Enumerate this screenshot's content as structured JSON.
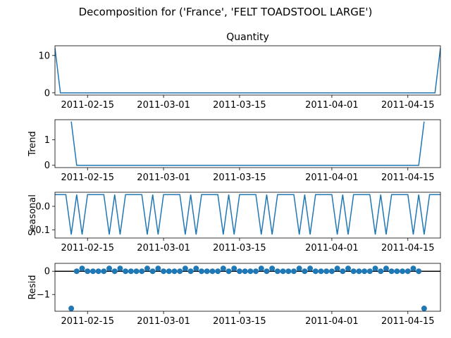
{
  "chart_data": {
    "type": "line",
    "title": "Decomposition for ('France', 'FELT TOADSTOOL LARGE')",
    "x_ticks": [
      "2011-02-15",
      "2011-03-01",
      "2011-03-15",
      "2011-04-01",
      "2011-04-15"
    ],
    "x_tick_days": [
      15,
      29,
      43,
      60,
      74
    ],
    "x_range_days": [
      9,
      80
    ],
    "panels": [
      {
        "name": "observed",
        "title": "Quantity",
        "ylabel": "",
        "kind": "line",
        "color": "#1f77b4",
        "ylim": [
          -0.6,
          12.6
        ],
        "yticks": [
          0,
          10
        ],
        "points": [
          [
            9,
            12
          ],
          [
            10,
            0
          ],
          [
            79,
            0
          ],
          [
            80,
            12
          ]
        ]
      },
      {
        "name": "trend",
        "title": "",
        "ylabel": "Trend",
        "kind": "line",
        "color": "#1f77b4",
        "ylim": [
          -0.09,
          1.78
        ],
        "yticks": [
          0,
          1
        ],
        "points": [
          [
            12,
            1.71
          ],
          [
            13,
            0
          ],
          [
            76,
            0
          ],
          [
            77,
            1.71
          ]
        ]
      },
      {
        "name": "seasonal",
        "title": "",
        "ylabel": "Seasonal",
        "kind": "line",
        "color": "#1f77b4",
        "ylim": [
          -0.135,
          0.06
        ],
        "yticks": [
          -0.1,
          0.0
        ],
        "ytick_labels": [
          "−0.1",
          "0.0"
        ],
        "weekly_pattern": [
          0.05,
          -0.12,
          0.05,
          -0.12,
          0.05,
          0.05,
          0.05
        ],
        "pattern_start_day": 11
      },
      {
        "name": "resid",
        "title": "",
        "ylabel": "Resid",
        "kind": "scatter",
        "color": "#1f77b4",
        "ylim": [
          -1.72,
          0.34
        ],
        "yticks": [
          -1,
          0
        ],
        "ytick_labels": [
          "−1",
          "0"
        ],
        "zero_line": true,
        "points": [
          [
            12,
            -1.6
          ],
          [
            13,
            0
          ],
          [
            14,
            0.12
          ],
          [
            15,
            0
          ],
          [
            16,
            0
          ],
          [
            17,
            0
          ],
          [
            18,
            0
          ],
          [
            19,
            0.12
          ],
          [
            20,
            0
          ],
          [
            21,
            0.12
          ],
          [
            22,
            0
          ],
          [
            23,
            0
          ],
          [
            24,
            0
          ],
          [
            25,
            0
          ],
          [
            26,
            0.12
          ],
          [
            27,
            0
          ],
          [
            28,
            0.12
          ],
          [
            29,
            0
          ],
          [
            30,
            0
          ],
          [
            31,
            0
          ],
          [
            32,
            0
          ],
          [
            33,
            0.12
          ],
          [
            34,
            0
          ],
          [
            35,
            0.12
          ],
          [
            36,
            0
          ],
          [
            37,
            0
          ],
          [
            38,
            0
          ],
          [
            39,
            0
          ],
          [
            40,
            0.12
          ],
          [
            41,
            0
          ],
          [
            42,
            0.12
          ],
          [
            43,
            0
          ],
          [
            44,
            0
          ],
          [
            45,
            0
          ],
          [
            46,
            0
          ],
          [
            47,
            0.12
          ],
          [
            48,
            0
          ],
          [
            49,
            0.12
          ],
          [
            50,
            0
          ],
          [
            51,
            0
          ],
          [
            52,
            0
          ],
          [
            53,
            0
          ],
          [
            54,
            0.12
          ],
          [
            55,
            0
          ],
          [
            56,
            0.12
          ],
          [
            57,
            0
          ],
          [
            58,
            0
          ],
          [
            59,
            0
          ],
          [
            60,
            0
          ],
          [
            61,
            0.12
          ],
          [
            62,
            0
          ],
          [
            63,
            0.12
          ],
          [
            64,
            0
          ],
          [
            65,
            0
          ],
          [
            66,
            0
          ],
          [
            67,
            0
          ],
          [
            68,
            0.12
          ],
          [
            69,
            0
          ],
          [
            70,
            0.12
          ],
          [
            71,
            0
          ],
          [
            72,
            0
          ],
          [
            73,
            0
          ],
          [
            74,
            0
          ],
          [
            75,
            0.12
          ],
          [
            76,
            0
          ],
          [
            77,
            -1.6
          ]
        ]
      }
    ]
  }
}
